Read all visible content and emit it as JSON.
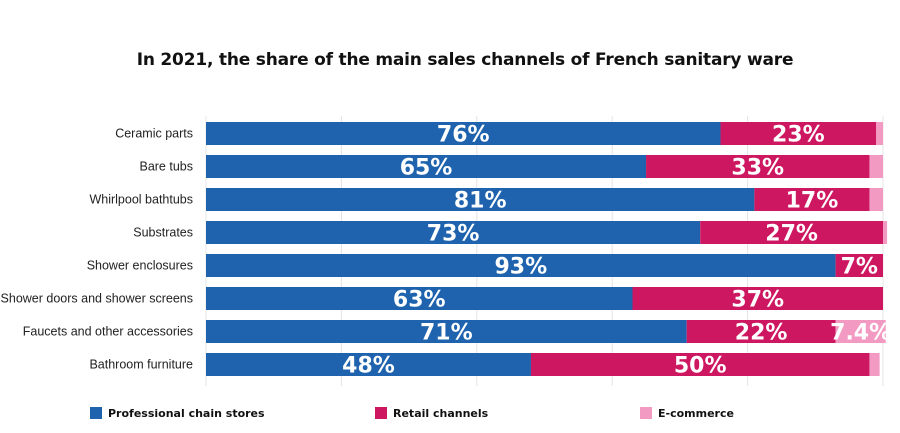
{
  "chart_data": {
    "type": "bar",
    "orientation": "horizontal",
    "stacked": true,
    "title": "In 2021, the share of the main sales channels of French sanitary ware",
    "categories": [
      "Ceramic parts",
      "Bare tubs",
      "Whirlpool bathtubs",
      "Substrates",
      "Shower enclosures",
      "Shower doors and shower screens",
      "Faucets and other accessories",
      "Bathroom furniture"
    ],
    "series": [
      {
        "name": "Professional chain stores",
        "color": "#1f63ae",
        "values": [
          76,
          65,
          81,
          73,
          93,
          63,
          71,
          48
        ],
        "labels": [
          "76%",
          "65%",
          "81%",
          "73%",
          "93%",
          "63%",
          "71%",
          "48%"
        ]
      },
      {
        "name": "Retail channels",
        "color": "#cd1760",
        "values": [
          23,
          33,
          17,
          27,
          7,
          37,
          22,
          50
        ],
        "labels": [
          "23%",
          "33%",
          "17%",
          "27%",
          "7%",
          "37%",
          "22%",
          "50%"
        ]
      },
      {
        "name": "E-commerce",
        "color": "#f39ac3",
        "values": [
          1,
          2,
          2,
          0.6,
          0,
          0,
          7.4,
          1.5
        ],
        "labels": [
          "",
          "",
          "",
          "",
          "",
          "",
          "7.4%",
          ""
        ]
      }
    ],
    "xlim": [
      0,
      100
    ],
    "grid": true,
    "legend_position": "bottom"
  }
}
